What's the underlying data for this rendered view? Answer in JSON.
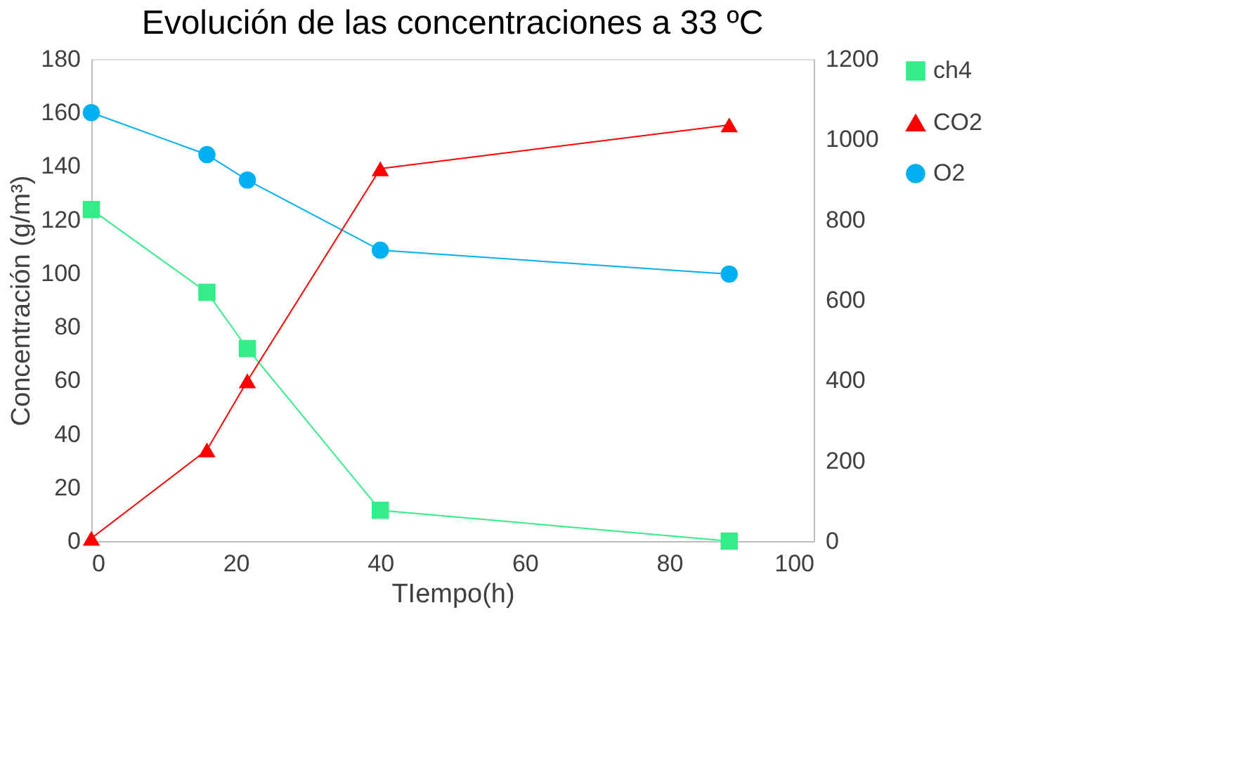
{
  "chart_data": {
    "type": "line",
    "title": "Evolución de las concentraciones a 33 ºC",
    "xlabel": "TIempo(h)",
    "ylabel": "Concentración (g/m³)",
    "x": [
      0,
      16,
      21.6,
      40,
      88.3
    ],
    "series": [
      {
        "name": "ch4",
        "color": "#33ee88",
        "marker": "square",
        "values": [
          123.8,
          92.9,
          71.9,
          11.5,
          0
        ]
      },
      {
        "name": "CO2",
        "color": "#ff0000",
        "marker": "triangle",
        "axis": "y2",
        "values": [
          7,
          227,
          399,
          927,
          1036
        ]
      },
      {
        "name": "O2",
        "color": "#00b0f0",
        "marker": "circle",
        "values": [
          160,
          144.3,
          134.8,
          108.6,
          99.7
        ]
      }
    ],
    "xlim": [
      0,
      100
    ],
    "xticks": [
      0,
      20,
      40,
      60,
      80,
      100
    ],
    "ylim": [
      0,
      180
    ],
    "yticks": [
      0,
      20,
      40,
      60,
      80,
      100,
      120,
      140,
      160,
      180
    ],
    "y2lim": [
      0,
      1200
    ],
    "y2ticks": [
      0,
      200,
      400,
      600,
      800,
      1000,
      1200
    ],
    "grid": false,
    "legend": "right",
    "line_style": "solid"
  }
}
